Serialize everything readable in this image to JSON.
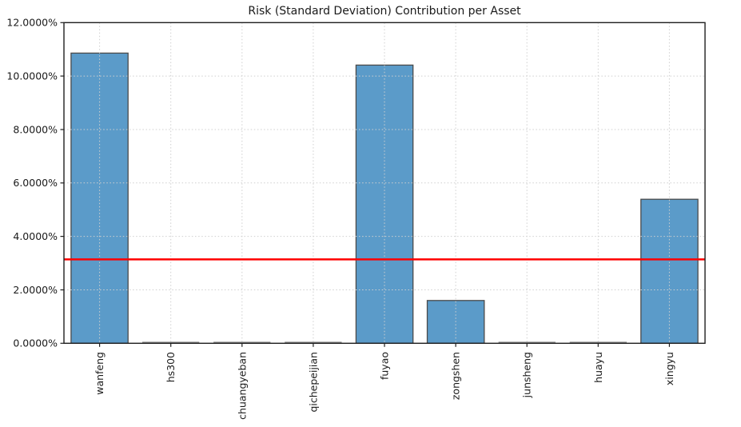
{
  "chart_data": {
    "type": "bar",
    "title": "Risk (Standard Deviation) Contribution per Asset",
    "categories": [
      "wanfeng",
      "hs300",
      "chuangyeban",
      "qichepeijian",
      "fuyao",
      "zongshen",
      "junsheng",
      "huayu",
      "xingyu"
    ],
    "values": [
      10.86,
      0.0,
      0.0,
      0.0,
      10.41,
      1.6,
      0.0,
      0.0,
      5.39
    ],
    "reference_line": {
      "value": 3.14
    },
    "xlabel": "",
    "ylabel": "",
    "ylim": [
      0,
      12
    ],
    "ytick_step": 2,
    "ytick_labels": [
      "0.0000%",
      "2.0000%",
      "4.0000%",
      "6.0000%",
      "8.0000%",
      "10.0000%",
      "12.0000%"
    ],
    "grid": "dotted, horizontal and vertical, drawn above bars",
    "legend": "none",
    "bar_width_fraction": 0.8,
    "colors": {
      "bar_fill": "#5b9bc9",
      "bar_edge": "#4a4a4a",
      "zero_bar_edge": "#8c8c8c",
      "grid": "#cfcfcf",
      "axis": "#1f1f1f",
      "text": "#1a1a1a",
      "reference": "#ff0000",
      "background": "#ffffff"
    }
  }
}
